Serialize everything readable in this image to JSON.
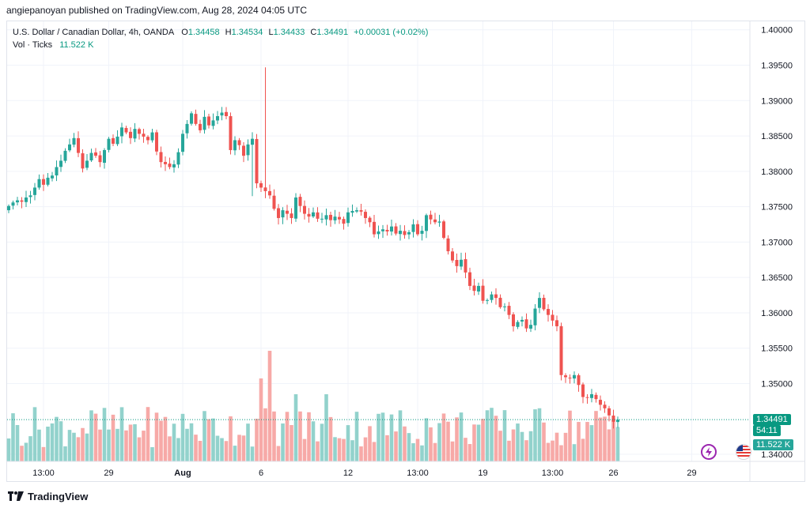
{
  "header": {
    "publisher_line": "angiepanoyan published on TradingView.com, Aug 28, 2024 04:05 UTC"
  },
  "legend": {
    "symbol": "U.S. Dollar / Canadian Dollar, 4h, OANDA",
    "o_label": "O",
    "o_value": "1.34458",
    "h_label": "H",
    "h_value": "1.34534",
    "l_label": "L",
    "l_value": "1.34433",
    "c_label": "C",
    "c_value": "1.34491",
    "change": "+0.00031 (+0.02%)",
    "vol_label": "Vol · Ticks",
    "vol_value": "11.522 K"
  },
  "price_badges": {
    "last_price": "1.34491",
    "countdown": "54:11",
    "volume": "11.522 K"
  },
  "footer": {
    "brand": "TradingView"
  },
  "colors": {
    "up": "#26a69a",
    "down": "#ef5350",
    "vol_up": "#92d2cc",
    "vol_down": "#f7a9a7",
    "grid": "#f0f3fa",
    "axis_text": "#131722",
    "badge_price": "#089981"
  },
  "chart_data": {
    "type": "candlestick",
    "symbol": "USDCAD",
    "timeframe": "4h",
    "y_ticks": [
      "1.40000",
      "1.39500",
      "1.39000",
      "1.38500",
      "1.38000",
      "1.37500",
      "1.37000",
      "1.36500",
      "1.36000",
      "1.35500",
      "1.35000",
      "1.34000"
    ],
    "y_tick_values": [
      1.4,
      1.395,
      1.39,
      1.385,
      1.38,
      1.375,
      1.37,
      1.365,
      1.36,
      1.355,
      1.35,
      1.34
    ],
    "ylim": [
      1.339,
      1.4012
    ],
    "x_ticks": [
      {
        "label": "13:00",
        "bar": 8,
        "bold": false
      },
      {
        "label": "29",
        "bar": 23,
        "bold": false
      },
      {
        "label": "Aug",
        "bar": 40,
        "bold": true
      },
      {
        "label": "6",
        "bar": 58,
        "bold": false
      },
      {
        "label": "12",
        "bar": 78,
        "bold": false
      },
      {
        "label": "13:00",
        "bar": 94,
        "bold": false
      },
      {
        "label": "19",
        "bar": 109,
        "bold": false
      },
      {
        "label": "13:00",
        "bar": 125,
        "bold": false
      },
      {
        "label": "26",
        "bar": 139,
        "bold": false
      },
      {
        "label": "29",
        "bar": 157,
        "bold": false
      }
    ],
    "closes": [
      1.3751,
      1.3756,
      1.3759,
      1.3757,
      1.3763,
      1.3766,
      1.3777,
      1.3789,
      1.3781,
      1.3791,
      1.3794,
      1.3806,
      1.3815,
      1.3829,
      1.3838,
      1.3847,
      1.3826,
      1.3804,
      1.3815,
      1.3826,
      1.3822,
      1.3813,
      1.383,
      1.3846,
      1.3839,
      1.3849,
      1.3862,
      1.3855,
      1.3847,
      1.386,
      1.3853,
      1.3849,
      1.3844,
      1.3855,
      1.3828,
      1.3813,
      1.381,
      1.3806,
      1.381,
      1.3827,
      1.3853,
      1.3867,
      1.3882,
      1.3867,
      1.3858,
      1.3877,
      1.3865,
      1.3872,
      1.3878,
      1.3883,
      1.3878,
      1.383,
      1.3844,
      1.3837,
      1.3822,
      1.3838,
      1.3846,
      1.3783,
      1.3777,
      1.3772,
      1.3766,
      1.3747,
      1.3734,
      1.3745,
      1.374,
      1.3734,
      1.3763,
      1.3751,
      1.374,
      1.3736,
      1.3742,
      1.3733,
      1.3733,
      1.3738,
      1.3731,
      1.3736,
      1.3732,
      1.3726,
      1.3742,
      1.3744,
      1.3745,
      1.3743,
      1.3734,
      1.3728,
      1.3711,
      1.3715,
      1.3718,
      1.3715,
      1.3722,
      1.3712,
      1.3716,
      1.371,
      1.3714,
      1.3725,
      1.3711,
      1.3716,
      1.3738,
      1.3732,
      1.3728,
      1.3729,
      1.3706,
      1.3687,
      1.3674,
      1.3666,
      1.3675,
      1.3657,
      1.3638,
      1.3631,
      1.3638,
      1.3617,
      1.3618,
      1.3626,
      1.3621,
      1.3608,
      1.3609,
      1.3597,
      1.3581,
      1.3587,
      1.359,
      1.3578,
      1.3583,
      1.3606,
      1.3621,
      1.3605,
      1.3597,
      1.3589,
      1.3581,
      1.3512,
      1.3509,
      1.3508,
      1.3512,
      1.3498,
      1.3481,
      1.348,
      1.3485,
      1.3478,
      1.347,
      1.3465,
      1.3455,
      1.3446,
      1.3449
    ],
    "last_price": 1.34491,
    "volume_unit": "ticks"
  }
}
